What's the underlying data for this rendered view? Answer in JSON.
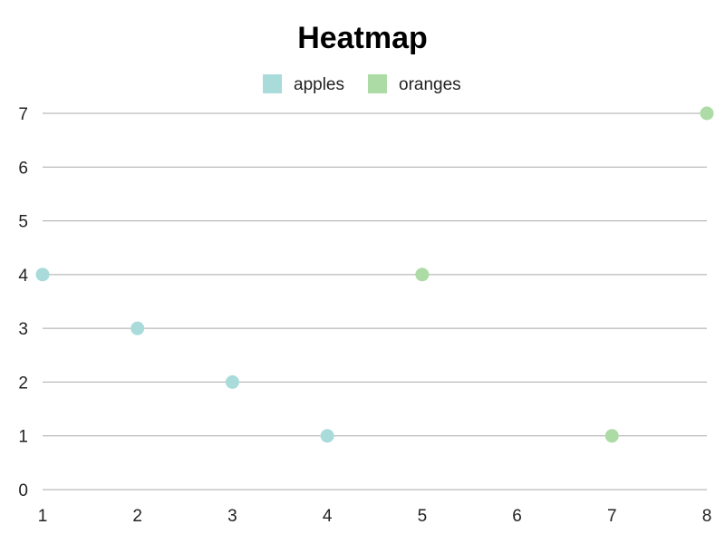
{
  "chart_data": {
    "type": "scatter",
    "title": "Heatmap",
    "xlabel": "",
    "ylabel": "",
    "xlim": [
      1,
      8
    ],
    "ylim": [
      0,
      7
    ],
    "x_ticks": [
      1,
      2,
      3,
      4,
      5,
      6,
      7,
      8
    ],
    "y_ticks": [
      0,
      1,
      2,
      3,
      4,
      5,
      6,
      7
    ],
    "grid": "horizontal",
    "legend": "top-center",
    "series": [
      {
        "name": "apples",
        "color": "#aadbdb",
        "points": [
          {
            "x": 1,
            "y": 4
          },
          {
            "x": 2,
            "y": 3
          },
          {
            "x": 3,
            "y": 2
          },
          {
            "x": 4,
            "y": 1
          }
        ]
      },
      {
        "name": "oranges",
        "color": "#acdba5",
        "points": [
          {
            "x": 5,
            "y": 4
          },
          {
            "x": 7,
            "y": 1
          },
          {
            "x": 8,
            "y": 7
          }
        ]
      }
    ]
  }
}
